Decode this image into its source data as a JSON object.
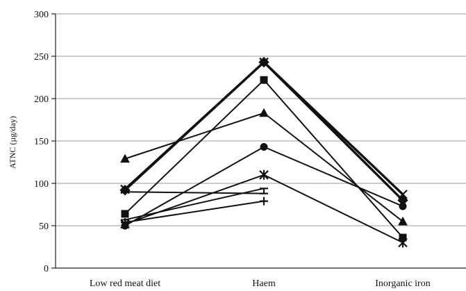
{
  "chart_data": {
    "type": "line",
    "title": "",
    "xlabel": "",
    "ylabel": "ATNC (µg/day)",
    "ylim": [
      0,
      300
    ],
    "yticks": [
      0,
      50,
      100,
      150,
      200,
      250,
      300
    ],
    "grid": true,
    "legend": "none",
    "categories": [
      "Low red meat diet",
      "Haem",
      "Inorganic iron"
    ],
    "series": [
      {
        "marker": "x",
        "bold": true,
        "values": [
          93,
          243,
          87
        ]
      },
      {
        "marker": "diamond",
        "bold": true,
        "values": [
          92,
          243,
          80
        ]
      },
      {
        "marker": "square",
        "bold": false,
        "values": [
          64,
          222,
          36
        ]
      },
      {
        "marker": "triangle",
        "bold": false,
        "values": [
          129,
          183,
          55
        ]
      },
      {
        "marker": "circle",
        "bold": false,
        "values": [
          50,
          143,
          73
        ]
      },
      {
        "marker": "star",
        "bold": false,
        "values": [
          52,
          110,
          30
        ]
      },
      {
        "marker": "hbar",
        "bold": false,
        "values": [
          90,
          88,
          null
        ]
      },
      {
        "marker": "tee",
        "bold": false,
        "values": [
          57,
          94,
          null
        ]
      },
      {
        "marker": "plus",
        "bold": false,
        "values": [
          54,
          79,
          null
        ]
      }
    ]
  }
}
